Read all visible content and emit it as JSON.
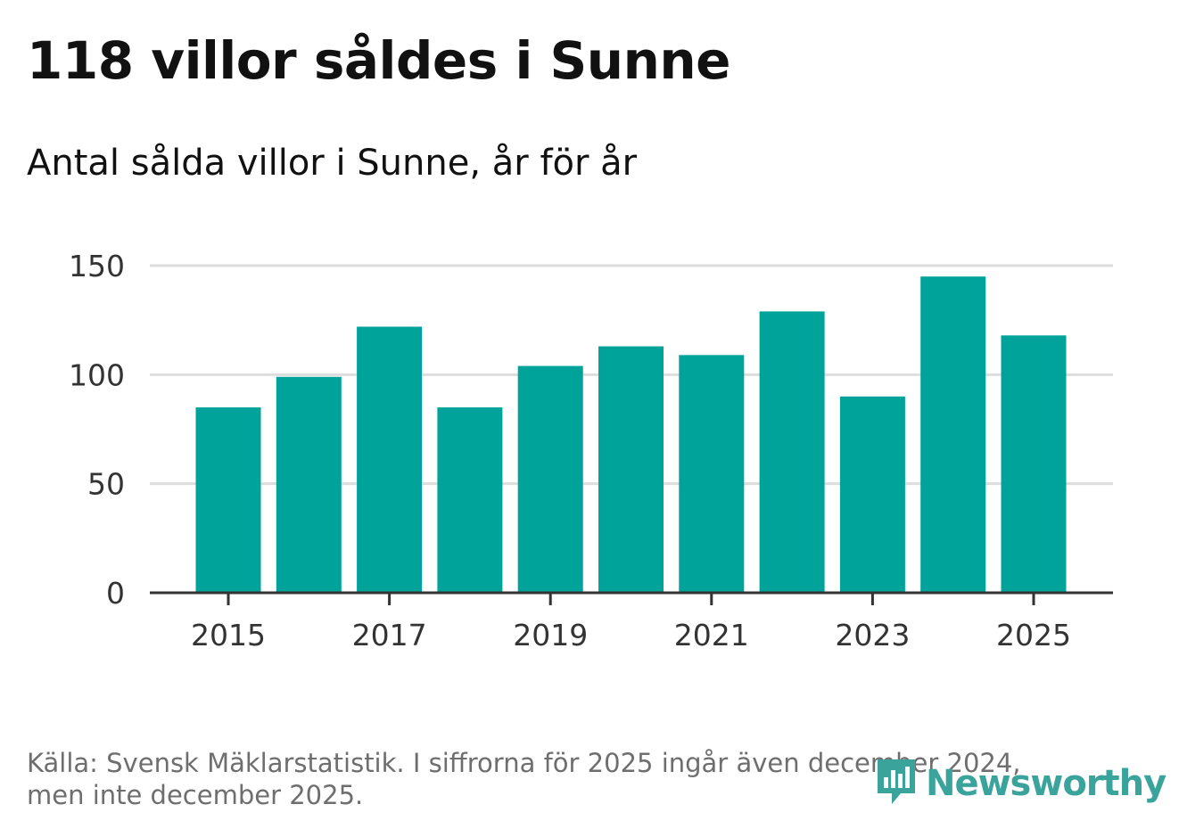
{
  "header": {
    "title": "118 villor såldes i Sunne",
    "subtitle": "Antal sålda villor i Sunne, år för år"
  },
  "footer": {
    "source_line1": "Källa: Svensk Mäklarstatistik. I siffrorna för 2025 ingår även december 2024,",
    "source_line2": "men inte december 2025."
  },
  "logo": {
    "text": "Newsworthy"
  },
  "colors": {
    "bar": "#00a39a",
    "grid": "#dddddd",
    "axis": "#333333",
    "tick_text": "#333333",
    "logo": "#3aa39b"
  },
  "chart_data": {
    "type": "bar",
    "title": "118 villor såldes i Sunne",
    "subtitle": "Antal sålda villor i Sunne, år för år",
    "xlabel": "",
    "ylabel": "",
    "categories": [
      "2015",
      "2016",
      "2017",
      "2018",
      "2019",
      "2020",
      "2021",
      "2022",
      "2023",
      "2024",
      "2025"
    ],
    "values": [
      85,
      99,
      122,
      85,
      104,
      113,
      109,
      129,
      90,
      145,
      118
    ],
    "ylim": [
      0,
      150
    ],
    "yticks": [
      0,
      50,
      100,
      150
    ],
    "xtick_labels": [
      "2015",
      "2017",
      "2019",
      "2021",
      "2023",
      "2025"
    ],
    "grid": true,
    "legend": "none"
  }
}
